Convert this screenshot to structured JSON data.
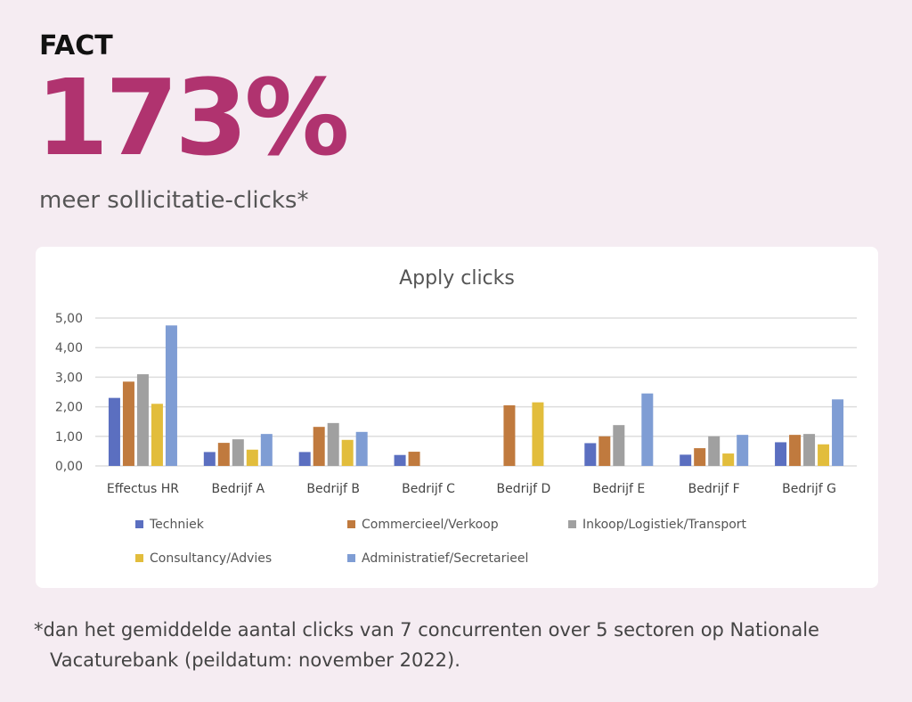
{
  "header": {
    "fact": "FACT",
    "big_number": "173%",
    "subtitle": "meer sollicitatie-clicks*"
  },
  "footnote": {
    "line1": "*dan het gemiddelde aantal clicks van 7 concurrenten over 5 sectoren op Nationale",
    "line2": "Vacaturebank (peildatum: november 2022)."
  },
  "chart_data": {
    "type": "bar",
    "title": "Apply clicks",
    "categories": [
      "Effectus HR",
      "Bedrijf A",
      "Bedrijf B",
      "Bedrijf C",
      "Bedrijf D",
      "Bedrijf E",
      "Bedrijf F",
      "Bedrijf G"
    ],
    "ylim": [
      0,
      5
    ],
    "yticks": [
      "0,00",
      "1,00",
      "2,00",
      "3,00",
      "4,00",
      "5,00"
    ],
    "grid": true,
    "legend_position": "bottom",
    "series": [
      {
        "name": "Techniek",
        "color": "#5b6fc0",
        "values": [
          2.3,
          0.47,
          0.47,
          0.37,
          0,
          0.77,
          0.38,
          0.8
        ]
      },
      {
        "name": "Commercieel/Verkoop",
        "color": "#c07a3e",
        "values": [
          2.85,
          0.78,
          1.32,
          0.48,
          2.05,
          1.0,
          0.6,
          1.05
        ]
      },
      {
        "name": "Inkoop/Logistiek/Transport",
        "color": "#a0a0a0",
        "values": [
          3.1,
          0.9,
          1.45,
          0,
          0,
          1.38,
          1.0,
          1.08
        ]
      },
      {
        "name": "Consultancy/Advies",
        "color": "#e2bd3c",
        "values": [
          2.1,
          0.55,
          0.88,
          0,
          2.15,
          0,
          0.42,
          0.73
        ]
      },
      {
        "name": "Administratief/Secretarieel",
        "color": "#7f9dd4",
        "values": [
          4.75,
          1.08,
          1.15,
          0,
          0,
          2.45,
          1.05,
          2.25
        ]
      }
    ]
  }
}
